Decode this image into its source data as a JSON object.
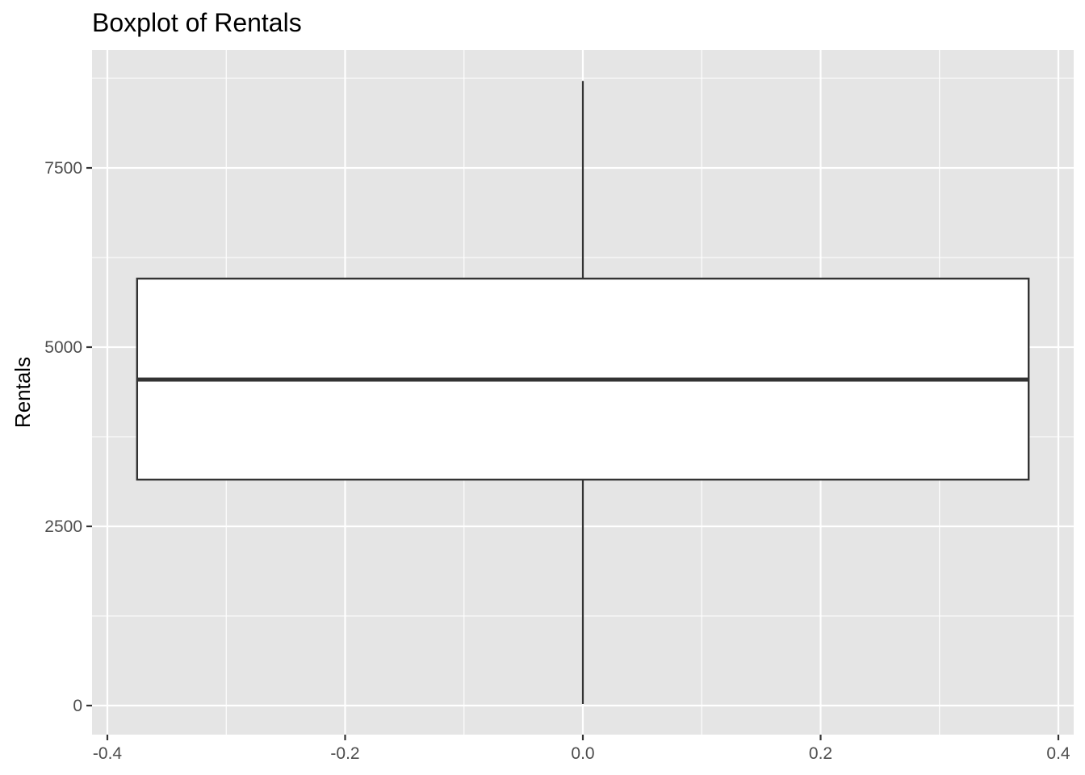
{
  "chart_data": {
    "type": "boxplot",
    "title": "Boxplot of Rentals",
    "xlabel": "",
    "ylabel": "Rentals",
    "xlim": [
      -0.4,
      0.4
    ],
    "ylim": [
      0,
      8714
    ],
    "x_ticks": [
      "-0.4",
      "-0.2",
      "0.0",
      "0.2",
      "0.4"
    ],
    "y_ticks": [
      "0",
      "2500",
      "5000",
      "7500"
    ],
    "grid": true,
    "box": {
      "x_center": 0.0,
      "x_left": -0.375,
      "x_right": 0.375,
      "min": 22,
      "q1": 3152,
      "median": 4548,
      "q3": 5956,
      "max": 8714
    },
    "colors": {
      "panel_background": "#e5e5e5",
      "grid": "#ffffff",
      "box_fill": "#ffffff",
      "box_stroke": "#333333",
      "tick_mark": "#333333"
    }
  }
}
